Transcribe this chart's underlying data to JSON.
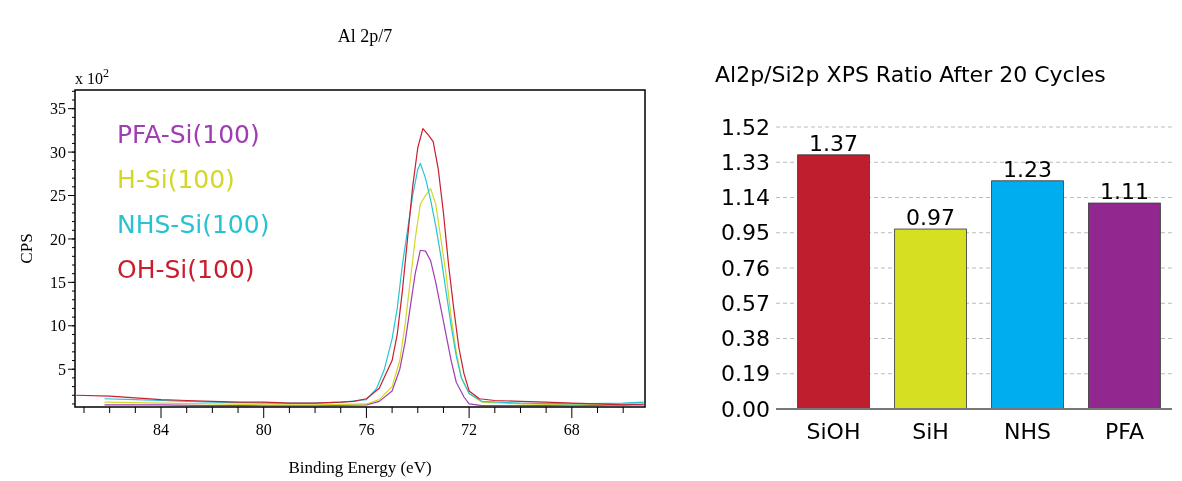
{
  "chart_data": [
    {
      "type": "line",
      "title": "Al 2p/7",
      "xlabel": "Binding Energy (eV)",
      "ylabel": "CPS",
      "annotations": [
        "x 10$^{2}$"
      ],
      "xlim": [
        87.35,
        65.15
      ],
      "xticks": [
        {
          "value": 87,
          "label": null
        },
        {
          "value": 86,
          "label": null
        },
        {
          "value": 85,
          "label": null
        },
        84,
        {
          "value": 83,
          "label": null
        },
        {
          "value": 82,
          "label": null
        },
        {
          "value": 81,
          "label": null
        },
        80,
        {
          "value": 79,
          "label": null
        },
        {
          "value": 78,
          "label": null
        },
        {
          "value": 77,
          "label": null
        },
        76,
        {
          "value": 75,
          "label": null
        },
        {
          "value": 74,
          "label": null
        },
        {
          "value": 73,
          "label": null
        },
        72,
        {
          "value": 71,
          "label": null
        },
        {
          "value": 70,
          "label": null
        },
        {
          "value": 69,
          "label": null
        },
        68,
        {
          "value": 67,
          "label": null
        },
        {
          "value": 66,
          "label": null
        }
      ],
      "ylim": [
        0.65,
        37.15
      ],
      "yticks": [
        5,
        10,
        15,
        20,
        25,
        30,
        35
      ],
      "legend": "top left",
      "grid": false,
      "series": [
        {
          "name": "PFA-Si(100)",
          "color": "#a03cb4",
          "x": [
            86.2,
            84,
            82,
            80,
            78,
            76,
            75.5,
            75,
            74.7,
            74.5,
            74.3,
            74.1,
            73.9,
            73.7,
            73.5,
            73.3,
            73.1,
            72.9,
            72.7,
            72.5,
            72.2,
            72,
            71.5,
            70,
            68,
            66,
            65.2
          ],
          "values": [
            0.9,
            0.9,
            0.8,
            0.8,
            0.8,
            0.9,
            1.3,
            2.5,
            5,
            8,
            12,
            16,
            18.7,
            18.6,
            17.5,
            15,
            12,
            9,
            6,
            3.5,
            1.8,
            1,
            0.8,
            0.8,
            0.8,
            0.9,
            1
          ]
        },
        {
          "name": "H-Si(100)",
          "color": "#d2d728",
          "x": [
            86.2,
            84,
            82,
            80,
            78,
            76,
            75.5,
            75,
            74.7,
            74.5,
            74.3,
            74.1,
            73.9,
            73.7,
            73.5,
            73.3,
            73.1,
            72.9,
            72.7,
            72.5,
            72.3,
            72,
            71.5,
            70,
            68,
            66,
            65.2
          ],
          "values": [
            1.2,
            1.1,
            1,
            0.9,
            0.9,
            1,
            1.5,
            3,
            6,
            10,
            15,
            20,
            24,
            25,
            25.8,
            24,
            20,
            16,
            11,
            7,
            4,
            2.2,
            1.2,
            1,
            0.9,
            1,
            1.1
          ]
        },
        {
          "name": "NHS-Si(100)",
          "color": "#28c3d2",
          "x": [
            86.2,
            85,
            84,
            83,
            82,
            80,
            78,
            77,
            76,
            75.6,
            75.3,
            75,
            74.8,
            74.6,
            74.4,
            74.2,
            74,
            73.9,
            73.7,
            73.5,
            73.3,
            73.1,
            72.9,
            72.7,
            72.5,
            72.3,
            72,
            71.5,
            70,
            68,
            66,
            65.2
          ],
          "values": [
            1.6,
            1.5,
            1.4,
            1.3,
            1.2,
            1.1,
            1.1,
            1.2,
            1.5,
            2.8,
            5,
            8.5,
            12,
            17,
            21,
            25,
            28,
            28.7,
            27,
            24.5,
            21.5,
            18,
            14,
            10,
            6.5,
            4,
            2.2,
            1.3,
            1.1,
            1,
            1.1,
            1.2
          ]
        },
        {
          "name": "OH-Si(100)",
          "color": "#c81e2d",
          "x": [
            87.3,
            86,
            85,
            84,
            83,
            82,
            81,
            80,
            79,
            78,
            77,
            76.5,
            76,
            75.5,
            75,
            74.8,
            74.6,
            74.4,
            74.2,
            74,
            73.8,
            73.6,
            73.4,
            73.2,
            73,
            72.8,
            72.6,
            72.4,
            72.2,
            72,
            71.6,
            71,
            70,
            69,
            68,
            67,
            66,
            65.2
          ],
          "values": [
            2,
            1.9,
            1.7,
            1.5,
            1.4,
            1.3,
            1.2,
            1.2,
            1.1,
            1.1,
            1.2,
            1.3,
            1.6,
            2.8,
            6,
            9,
            14,
            20,
            26,
            30.5,
            32.7,
            32,
            31.2,
            28,
            23,
            17,
            12,
            7.5,
            4.5,
            2.5,
            1.6,
            1.4,
            1.3,
            1.2,
            1.1,
            1,
            0.9,
            0.9
          ]
        }
      ]
    },
    {
      "type": "bar",
      "title": "Al2p/Si2p XPS Ratio After 20 Cycles",
      "categories": [
        "SiOH",
        "SiH",
        "NHS",
        "PFA"
      ],
      "values": [
        1.37,
        0.97,
        1.23,
        1.11
      ],
      "colors": [
        "#be1e2d",
        "#d7df23",
        "#00aeef",
        "#92278f"
      ],
      "ylim": [
        0,
        1.52
      ],
      "yticks": [
        {
          "value": 0,
          "label": "0.00"
        },
        0.19,
        0.38,
        0.57,
        0.76,
        0.95,
        1.14,
        1.33,
        1.52
      ],
      "grid": "y",
      "data_labels": true
    }
  ]
}
